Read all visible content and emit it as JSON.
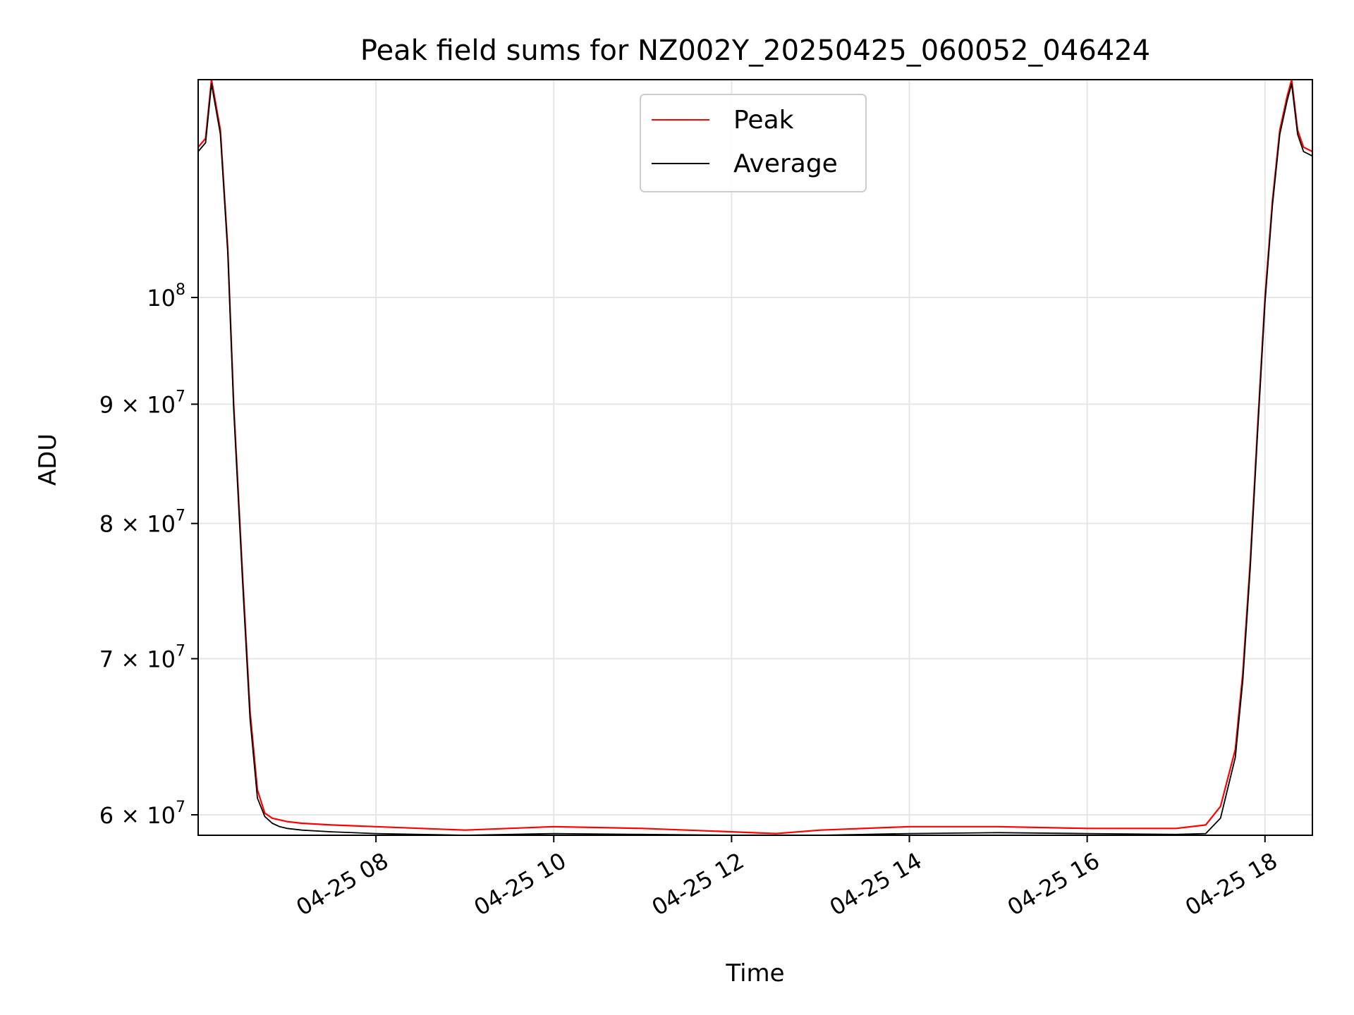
{
  "chart_data": {
    "type": "line",
    "title": "Peak field sums for NZ002Y_20250425_060052_046424",
    "xlabel": "Time",
    "ylabel": "ADU",
    "y_scale": "log",
    "grid": true,
    "legend_placement": "upper center",
    "xlim": [
      "2025-04-25 06:00",
      "2025-04-25 18:32"
    ],
    "ylim": [
      58800000,
      124000000
    ],
    "x_ticks": [
      {
        "value": "2025-04-25 08:00",
        "label": "04-25 08"
      },
      {
        "value": "2025-04-25 10:00",
        "label": "04-25 10"
      },
      {
        "value": "2025-04-25 12:00",
        "label": "04-25 12"
      },
      {
        "value": "2025-04-25 14:00",
        "label": "04-25 14"
      },
      {
        "value": "2025-04-25 16:00",
        "label": "04-25 16"
      },
      {
        "value": "2025-04-25 18:00",
        "label": "04-25 18"
      }
    ],
    "y_ticks": [
      {
        "value": 100000000,
        "base": "10",
        "exp": "8"
      },
      {
        "value": 90000000,
        "base": "9 × 10",
        "exp": "7"
      },
      {
        "value": 80000000,
        "base": "8 × 10",
        "exp": "7"
      },
      {
        "value": 70000000,
        "base": "7 × 10",
        "exp": "7"
      },
      {
        "value": 60000000,
        "base": "6 × 10",
        "exp": "7"
      }
    ],
    "series": [
      {
        "name": "Peak",
        "color": "#ff0000",
        "x": [
          "2025-04-25 06:00",
          "2025-04-25 06:05",
          "2025-04-25 06:09",
          "2025-04-25 06:15",
          "2025-04-25 06:20",
          "2025-04-25 06:24",
          "2025-04-25 06:30",
          "2025-04-25 06:35",
          "2025-04-25 06:40",
          "2025-04-25 06:45",
          "2025-04-25 06:50",
          "2025-04-25 06:55",
          "2025-04-25 07:00",
          "2025-04-25 07:10",
          "2025-04-25 07:30",
          "2025-04-25 08:00",
          "2025-04-25 09:00",
          "2025-04-25 10:00",
          "2025-04-25 11:00",
          "2025-04-25 12:00",
          "2025-04-25 12:30",
          "2025-04-25 13:00",
          "2025-04-25 14:00",
          "2025-04-25 15:00",
          "2025-04-25 16:00",
          "2025-04-25 17:00",
          "2025-04-25 17:20",
          "2025-04-25 17:30",
          "2025-04-25 17:40",
          "2025-04-25 17:45",
          "2025-04-25 17:50",
          "2025-04-25 17:55",
          "2025-04-25 18:00",
          "2025-04-25 18:05",
          "2025-04-25 18:10",
          "2025-04-25 18:15",
          "2025-04-25 18:18",
          "2025-04-25 18:22",
          "2025-04-25 18:26",
          "2025-04-25 18:32"
        ],
        "values": [
          116000000,
          117000000,
          124000000,
          118000000,
          105000000,
          90000000,
          76000000,
          66500000,
          61500000,
          60100000,
          59800000,
          59700000,
          59600000,
          59500000,
          59400000,
          59300000,
          59100000,
          59300000,
          59200000,
          59000000,
          58900000,
          59100000,
          59300000,
          59300000,
          59200000,
          59200000,
          59400000,
          60500000,
          64000000,
          69000000,
          77000000,
          88000000,
          100000000,
          110000000,
          118000000,
          122000000,
          124000000,
          118000000,
          116000000,
          115500000
        ]
      },
      {
        "name": "Average",
        "color": "#000000",
        "x": [
          "2025-04-25 06:00",
          "2025-04-25 06:05",
          "2025-04-25 06:09",
          "2025-04-25 06:15",
          "2025-04-25 06:20",
          "2025-04-25 06:24",
          "2025-04-25 06:30",
          "2025-04-25 06:35",
          "2025-04-25 06:40",
          "2025-04-25 06:45",
          "2025-04-25 06:50",
          "2025-04-25 06:55",
          "2025-04-25 07:00",
          "2025-04-25 07:10",
          "2025-04-25 07:30",
          "2025-04-25 08:00",
          "2025-04-25 09:00",
          "2025-04-25 10:00",
          "2025-04-25 11:00",
          "2025-04-25 12:00",
          "2025-04-25 12:30",
          "2025-04-25 13:00",
          "2025-04-25 14:00",
          "2025-04-25 15:00",
          "2025-04-25 16:00",
          "2025-04-25 17:00",
          "2025-04-25 17:20",
          "2025-04-25 17:30",
          "2025-04-25 17:40",
          "2025-04-25 17:45",
          "2025-04-25 17:50",
          "2025-04-25 17:55",
          "2025-04-25 18:00",
          "2025-04-25 18:05",
          "2025-04-25 18:10",
          "2025-04-25 18:15",
          "2025-04-25 18:18",
          "2025-04-25 18:22",
          "2025-04-25 18:26",
          "2025-04-25 18:32"
        ],
        "values": [
          115500000,
          116500000,
          123500000,
          117500000,
          104500000,
          89500000,
          75500000,
          66000000,
          61000000,
          59900000,
          59500000,
          59300000,
          59200000,
          59100000,
          59000000,
          58900000,
          58800000,
          58900000,
          58850000,
          58800000,
          58750000,
          58800000,
          58900000,
          58950000,
          58900000,
          58850000,
          58900000,
          59800000,
          63500000,
          68500000,
          76500000,
          87500000,
          99500000,
          109500000,
          117500000,
          121500000,
          123500000,
          117500000,
          115500000,
          115000000
        ]
      }
    ]
  }
}
